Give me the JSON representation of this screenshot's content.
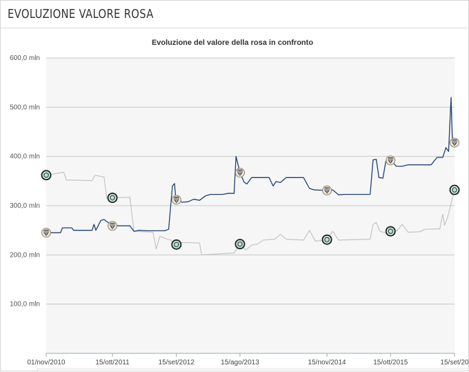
{
  "header": {
    "title": "EVOLUZIONE VALORE ROSA"
  },
  "chart_data": {
    "type": "line",
    "title": "Evoluzione del valore della rosa in confronto",
    "xlabel": "",
    "ylabel": "",
    "ylim": [
      0,
      600
    ],
    "y_ticks": [
      {
        "value": 100,
        "label": "100,0 mln"
      },
      {
        "value": 200,
        "label": "200,0 mln"
      },
      {
        "value": 300,
        "label": "300,0 mln"
      },
      {
        "value": 400,
        "label": "400,0 mln"
      },
      {
        "value": 500,
        "label": "500,0 mln"
      },
      {
        "value": 600,
        "label": "600,0 mln"
      }
    ],
    "xlim": [
      "2010-11-01",
      "2016-09-15"
    ],
    "x_ticks": [
      {
        "value": "2010-11-01",
        "label": "01/nov/2010"
      },
      {
        "value": "2011-10-15",
        "label": "15/ott/2011"
      },
      {
        "value": "2012-09-15",
        "label": "15/set/2012"
      },
      {
        "value": "2013-08-15",
        "label": "15/ago/2013"
      },
      {
        "value": "2014-11-15",
        "label": "15/nov/2014"
      },
      {
        "value": "2015-10-15",
        "label": "15/ott/2015"
      },
      {
        "value": "2016-09-15",
        "label": "15/set/20"
      }
    ],
    "grid": true,
    "legend": "none",
    "colors": {
      "series_a": "#1d3f73",
      "series_b": "#c4c4c4",
      "plot_bg": "#f6f6f6",
      "grid": "#c8c8c8"
    },
    "series": [
      {
        "color": "#1d3f73",
        "points": [
          {
            "x": "2010-11-01",
            "y": 245
          },
          {
            "x": "2011-01-15",
            "y": 245
          },
          {
            "x": "2011-01-25",
            "y": 255
          },
          {
            "x": "2011-03-15",
            "y": 255
          },
          {
            "x": "2011-03-25",
            "y": 250
          },
          {
            "x": "2011-06-30",
            "y": 250
          },
          {
            "x": "2011-07-10",
            "y": 262
          },
          {
            "x": "2011-07-20",
            "y": 250
          },
          {
            "x": "2011-08-15",
            "y": 270
          },
          {
            "x": "2011-09-01",
            "y": 272
          },
          {
            "x": "2011-09-25",
            "y": 265
          },
          {
            "x": "2011-10-15",
            "y": 259
          },
          {
            "x": "2012-01-15",
            "y": 259
          },
          {
            "x": "2012-02-05",
            "y": 248
          },
          {
            "x": "2012-03-01",
            "y": 250
          },
          {
            "x": "2012-04-15",
            "y": 249
          },
          {
            "x": "2012-07-15",
            "y": 249
          },
          {
            "x": "2012-08-05",
            "y": 252
          },
          {
            "x": "2012-08-25",
            "y": 340
          },
          {
            "x": "2012-09-05",
            "y": 345
          },
          {
            "x": "2012-09-10",
            "y": 322
          },
          {
            "x": "2012-09-15",
            "y": 312
          },
          {
            "x": "2012-10-15",
            "y": 307
          },
          {
            "x": "2012-11-15",
            "y": 308
          },
          {
            "x": "2012-12-15",
            "y": 313
          },
          {
            "x": "2013-01-15",
            "y": 311
          },
          {
            "x": "2013-02-15",
            "y": 320
          },
          {
            "x": "2013-03-15",
            "y": 323
          },
          {
            "x": "2013-05-15",
            "y": 323
          },
          {
            "x": "2013-06-15",
            "y": 325
          },
          {
            "x": "2013-07-15",
            "y": 325
          },
          {
            "x": "2013-07-25",
            "y": 400
          },
          {
            "x": "2013-08-15",
            "y": 367
          },
          {
            "x": "2013-09-05",
            "y": 348
          },
          {
            "x": "2013-09-20",
            "y": 344
          },
          {
            "x": "2013-10-15",
            "y": 357
          },
          {
            "x": "2014-01-15",
            "y": 357
          },
          {
            "x": "2014-02-05",
            "y": 340
          },
          {
            "x": "2014-02-20",
            "y": 349
          },
          {
            "x": "2014-03-15",
            "y": 347
          },
          {
            "x": "2014-04-15",
            "y": 357
          },
          {
            "x": "2014-07-15",
            "y": 357
          },
          {
            "x": "2014-08-15",
            "y": 335
          },
          {
            "x": "2014-09-10",
            "y": 332
          },
          {
            "x": "2014-11-15",
            "y": 331
          },
          {
            "x": "2014-12-15",
            "y": 332
          },
          {
            "x": "2015-01-15",
            "y": 322
          },
          {
            "x": "2015-02-15",
            "y": 323
          },
          {
            "x": "2015-06-30",
            "y": 323
          },
          {
            "x": "2015-07-15",
            "y": 393
          },
          {
            "x": "2015-08-01",
            "y": 394
          },
          {
            "x": "2015-08-15",
            "y": 357
          },
          {
            "x": "2015-09-05",
            "y": 356
          },
          {
            "x": "2015-09-20",
            "y": 390
          },
          {
            "x": "2015-10-15",
            "y": 392
          },
          {
            "x": "2015-11-15",
            "y": 380
          },
          {
            "x": "2015-12-15",
            "y": 380
          },
          {
            "x": "2016-01-15",
            "y": 383
          },
          {
            "x": "2016-05-15",
            "y": 383
          },
          {
            "x": "2016-06-15",
            "y": 398
          },
          {
            "x": "2016-07-15",
            "y": 398
          },
          {
            "x": "2016-08-01",
            "y": 418
          },
          {
            "x": "2016-08-15",
            "y": 410
          },
          {
            "x": "2016-08-28",
            "y": 520
          },
          {
            "x": "2016-09-03",
            "y": 440
          },
          {
            "x": "2016-09-15",
            "y": 428
          }
        ],
        "markers": [
          {
            "x": "2010-11-01",
            "y": 245
          },
          {
            "x": "2011-10-15",
            "y": 259
          },
          {
            "x": "2012-09-15",
            "y": 312
          },
          {
            "x": "2013-08-15",
            "y": 367
          },
          {
            "x": "2014-11-15",
            "y": 331
          },
          {
            "x": "2015-10-15",
            "y": 392
          },
          {
            "x": "2016-09-15",
            "y": 428
          }
        ]
      },
      {
        "color": "#c4c4c4",
        "points": [
          {
            "x": "2010-11-01",
            "y": 362
          },
          {
            "x": "2011-02-01",
            "y": 368
          },
          {
            "x": "2011-02-15",
            "y": 352
          },
          {
            "x": "2011-06-30",
            "y": 351
          },
          {
            "x": "2011-07-15",
            "y": 362
          },
          {
            "x": "2011-09-01",
            "y": 358
          },
          {
            "x": "2011-09-15",
            "y": 315
          },
          {
            "x": "2011-10-15",
            "y": 316
          },
          {
            "x": "2012-01-15",
            "y": 317
          },
          {
            "x": "2012-02-05",
            "y": 248
          },
          {
            "x": "2012-05-15",
            "y": 246
          },
          {
            "x": "2012-06-01",
            "y": 212
          },
          {
            "x": "2012-06-20",
            "y": 238
          },
          {
            "x": "2012-07-15",
            "y": 234
          },
          {
            "x": "2012-08-15",
            "y": 230
          },
          {
            "x": "2012-09-15",
            "y": 221
          },
          {
            "x": "2012-10-15",
            "y": 225
          },
          {
            "x": "2012-11-15",
            "y": 225
          },
          {
            "x": "2013-01-15",
            "y": 224
          },
          {
            "x": "2013-01-25",
            "y": 200
          },
          {
            "x": "2013-07-15",
            "y": 204
          },
          {
            "x": "2013-08-15",
            "y": 222
          },
          {
            "x": "2013-09-15",
            "y": 210
          },
          {
            "x": "2013-10-15",
            "y": 220
          },
          {
            "x": "2013-11-15",
            "y": 222
          },
          {
            "x": "2013-12-15",
            "y": 230
          },
          {
            "x": "2014-02-15",
            "y": 232
          },
          {
            "x": "2014-03-15",
            "y": 242
          },
          {
            "x": "2014-04-15",
            "y": 232
          },
          {
            "x": "2014-07-15",
            "y": 230
          },
          {
            "x": "2014-08-15",
            "y": 250
          },
          {
            "x": "2014-09-15",
            "y": 228
          },
          {
            "x": "2014-11-15",
            "y": 231
          },
          {
            "x": "2014-12-15",
            "y": 248
          },
          {
            "x": "2015-01-15",
            "y": 230
          },
          {
            "x": "2015-06-30",
            "y": 232
          },
          {
            "x": "2015-07-15",
            "y": 262
          },
          {
            "x": "2015-08-01",
            "y": 266
          },
          {
            "x": "2015-08-20",
            "y": 248
          },
          {
            "x": "2015-09-15",
            "y": 245
          },
          {
            "x": "2015-10-15",
            "y": 248
          },
          {
            "x": "2015-11-15",
            "y": 248
          },
          {
            "x": "2015-12-15",
            "y": 262
          },
          {
            "x": "2016-01-15",
            "y": 246
          },
          {
            "x": "2016-03-15",
            "y": 247
          },
          {
            "x": "2016-04-15",
            "y": 252
          },
          {
            "x": "2016-06-30",
            "y": 253
          },
          {
            "x": "2016-07-15",
            "y": 283
          },
          {
            "x": "2016-07-25",
            "y": 260
          },
          {
            "x": "2016-08-10",
            "y": 277
          },
          {
            "x": "2016-08-25",
            "y": 300
          },
          {
            "x": "2016-09-15",
            "y": 332
          }
        ],
        "markers": [
          {
            "x": "2010-11-01",
            "y": 362
          },
          {
            "x": "2011-10-15",
            "y": 316
          },
          {
            "x": "2012-09-15",
            "y": 221
          },
          {
            "x": "2013-08-15",
            "y": 222
          },
          {
            "x": "2014-11-15",
            "y": 231
          },
          {
            "x": "2015-10-15",
            "y": 248
          },
          {
            "x": "2016-09-15",
            "y": 332
          }
        ]
      }
    ]
  }
}
